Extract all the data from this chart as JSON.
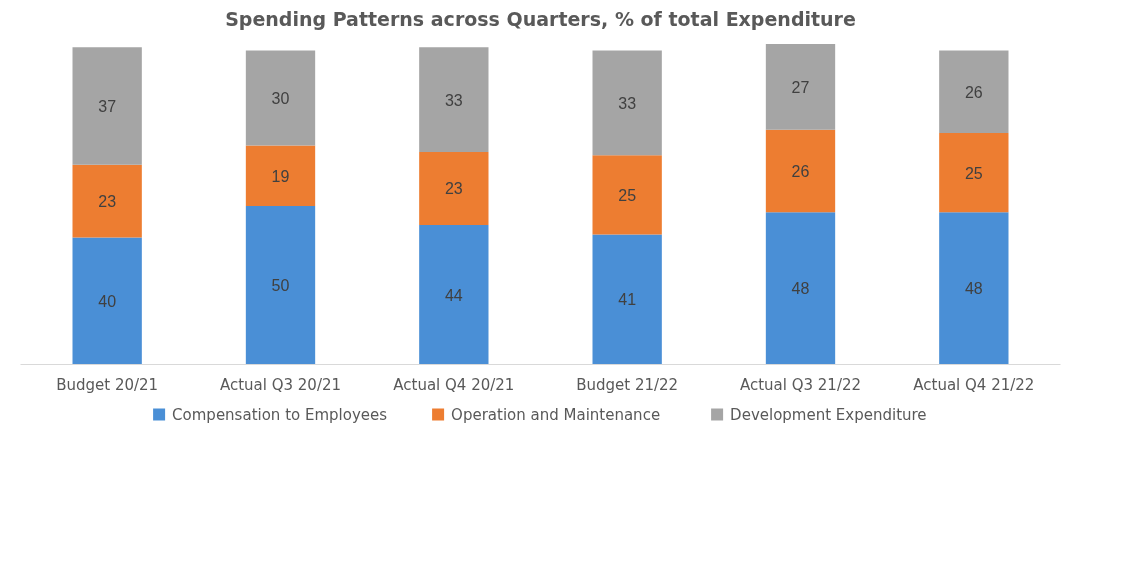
{
  "chart_data": {
    "type": "bar",
    "stacked": true,
    "title": "Spending Patterns across Quarters, % of total Expenditure",
    "categories": [
      "Budget 20/21",
      "Actual Q3 20/21",
      "Actual Q4 20/21",
      "Budget 21/22",
      "Actual Q3 21/22",
      "Actual Q4 21/22"
    ],
    "series": [
      {
        "name": "Compensation to Employees",
        "color": "#4a8fd6",
        "values": [
          40,
          50,
          44,
          41,
          48,
          48
        ]
      },
      {
        "name": "Operation and Maintenance",
        "color": "#ed7d31",
        "values": [
          23,
          19,
          23,
          25,
          26,
          25
        ]
      },
      {
        "name": "Development Expenditure",
        "color": "#a5a5a5",
        "values": [
          37,
          30,
          33,
          33,
          27,
          26
        ]
      }
    ],
    "data_labels": true,
    "grid": false,
    "legend": "bottom"
  }
}
